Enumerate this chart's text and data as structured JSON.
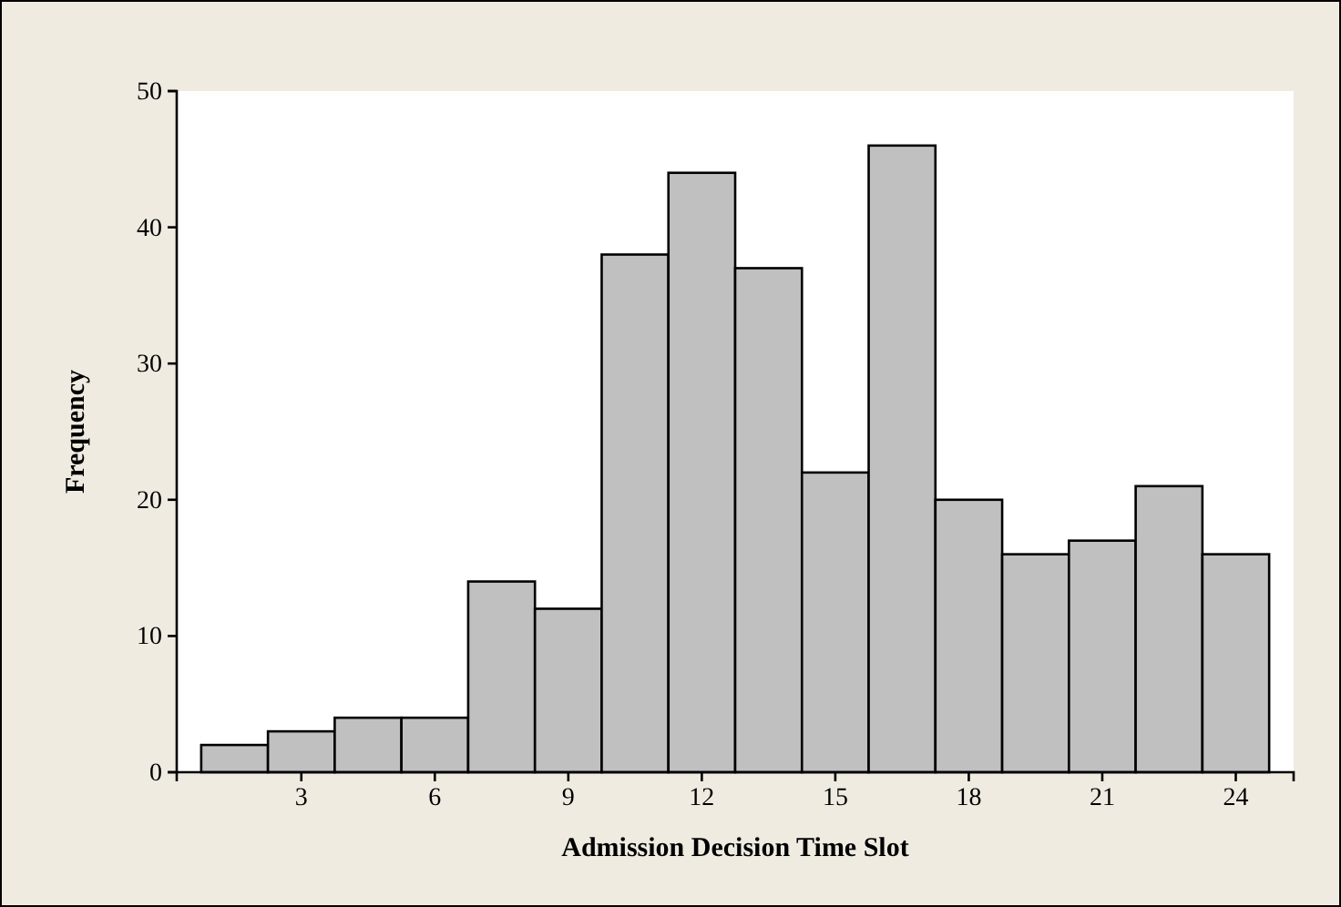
{
  "chart_data": {
    "type": "histogram",
    "xlabel": "Admission Decision Time Slot",
    "ylabel": "Frequency",
    "bins": [
      0.75,
      2.25,
      3.75,
      5.25,
      6.75,
      8.25,
      9.75,
      11.25,
      12.75,
      14.25,
      15.75,
      17.25,
      18.75,
      20.25,
      21.75,
      23.25,
      24.75
    ],
    "values": [
      2,
      3,
      4,
      4,
      14,
      12,
      38,
      44,
      37,
      22,
      46,
      20,
      16,
      17,
      21,
      16
    ],
    "color": "#c0c0c0",
    "xlim": [
      0.2,
      25.3
    ],
    "xticks": [
      3,
      6,
      9,
      12,
      15,
      18,
      21,
      24
    ],
    "ylim": [
      0,
      50
    ],
    "yticks": [
      0,
      10,
      20,
      30,
      40,
      50
    ],
    "grid": false
  }
}
